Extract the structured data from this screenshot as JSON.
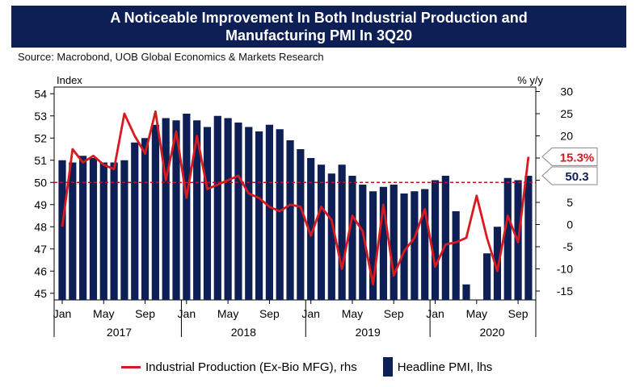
{
  "header": {
    "title": "A Noticeable Improvement In Both Industrial Production and Manufacturing PMI In 3Q20"
  },
  "source": "Source: Macrobond, UOB Global Economics & Markets Research",
  "chart_data": {
    "type": "bar+line",
    "title": "A Noticeable Improvement In Both Industrial Production and Manufacturing PMI In 3Q20",
    "left_axis": {
      "unit": "Index",
      "range": [
        44.7,
        54.3
      ],
      "ticks": [
        45,
        46,
        47,
        48,
        49,
        50,
        51,
        52,
        53,
        54
      ]
    },
    "right_axis": {
      "unit": "% y/y",
      "range": [
        -17,
        31
      ],
      "ticks": [
        -15,
        -10,
        -5,
        0,
        5,
        10,
        15,
        20,
        25,
        30
      ]
    },
    "x_tick_labels": [
      {
        "label": "Jan",
        "index": 0
      },
      {
        "label": "May",
        "index": 4
      },
      {
        "label": "Sep",
        "index": 8
      },
      {
        "label": "Jan",
        "index": 12
      },
      {
        "label": "May",
        "index": 16
      },
      {
        "label": "Sep",
        "index": 20
      },
      {
        "label": "Jan",
        "index": 24
      },
      {
        "label": "May",
        "index": 28
      },
      {
        "label": "Sep",
        "index": 32
      },
      {
        "label": "Jan",
        "index": 36
      },
      {
        "label": "May",
        "index": 40
      },
      {
        "label": "Sep",
        "index": 44
      }
    ],
    "year_labels": [
      {
        "label": "2017",
        "index": 5.5
      },
      {
        "label": "2018",
        "index": 17.5
      },
      {
        "label": "2019",
        "index": 29.5
      },
      {
        "label": "2020",
        "index": 41.5
      }
    ],
    "reference_line": {
      "axis": "left",
      "value": 50,
      "style": "dashed",
      "color": "#c0141a"
    },
    "callouts": [
      {
        "label": "15.3%",
        "series": "Industrial Production (Ex-Bio MFG), rhs",
        "value": 15.3
      },
      {
        "label": "50.3",
        "series": "Headline PMI, lhs",
        "value": 50.3
      }
    ],
    "series": [
      {
        "name": "Headline PMI, lhs",
        "type": "bar",
        "axis": "left",
        "color": "#0e1f55",
        "values": [
          51.0,
          50.9,
          51.2,
          51.1,
          50.9,
          50.9,
          51.0,
          51.8,
          52.0,
          52.6,
          52.9,
          52.8,
          53.1,
          52.8,
          52.5,
          53.0,
          52.9,
          52.7,
          52.5,
          52.3,
          52.6,
          52.4,
          51.9,
          51.5,
          51.1,
          50.8,
          50.4,
          50.8,
          50.3,
          49.9,
          49.6,
          49.8,
          49.9,
          49.5,
          49.6,
          49.7,
          50.1,
          50.3,
          48.7,
          45.4,
          44.7,
          46.8,
          48.0,
          50.2,
          50.1,
          50.3
        ]
      },
      {
        "name": "Industrial Production (Ex-Bio MFG), rhs",
        "type": "line",
        "axis": "right",
        "color": "#d61a1f",
        "values": [
          -0.5,
          17,
          14,
          15.5,
          13.5,
          12.5,
          25,
          20,
          16,
          25.5,
          10,
          21,
          6,
          20,
          8,
          9,
          10,
          11,
          7,
          6,
          4,
          3,
          4.5,
          4,
          -2.5,
          4,
          1,
          -10,
          2,
          -1.5,
          -13.5,
          4.5,
          -11.5,
          -6,
          -3,
          3.5,
          -9.5,
          -4.5,
          -4,
          -3,
          6.5,
          -3,
          -10.5,
          2,
          -4,
          15.3
        ]
      }
    ],
    "legend": {
      "placement": "bottom"
    }
  }
}
